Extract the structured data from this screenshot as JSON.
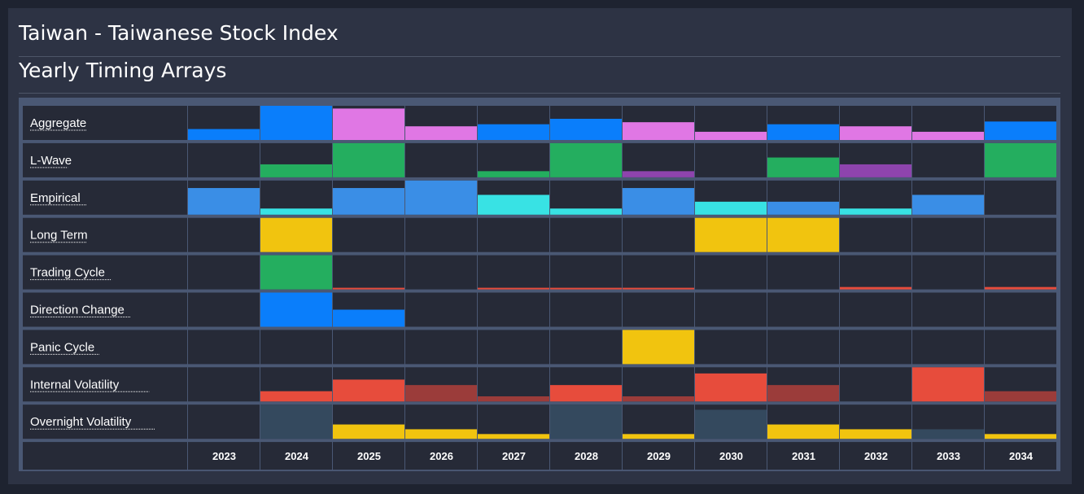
{
  "header": {
    "title": "Taiwan - Taiwanese Stock Index",
    "subtitle": "Yearly Timing Arrays"
  },
  "colors": {
    "cell_bg": "#262a37",
    "grid_line": "#4a5874",
    "blue": "#0a7efb",
    "pink": "#e077e4",
    "green": "#24ae5f",
    "purple": "#8e44ad",
    "lightblue": "#3a8ee6",
    "cyan": "#38e2e4",
    "yellow": "#f1c40f",
    "red": "#e74c3c",
    "darkred": "#9b3c3a",
    "slate": "#34495e"
  },
  "chart_data": {
    "type": "heatmap",
    "title": "Yearly Timing Arrays",
    "years": [
      "2023",
      "2024",
      "2025",
      "2026",
      "2027",
      "2028",
      "2029",
      "2030",
      "2031",
      "2032",
      "2033",
      "2034"
    ],
    "rows": [
      {
        "label": "Aggregate",
        "values": [
          0.32,
          1.0,
          0.92,
          0.4,
          0.46,
          0.62,
          0.52,
          0.24,
          0.46,
          0.4,
          0.24,
          0.54
        ],
        "colors": [
          "blue",
          "blue",
          "pink",
          "pink",
          "blue",
          "blue",
          "pink",
          "pink",
          "blue",
          "pink",
          "pink",
          "blue"
        ]
      },
      {
        "label": "L-Wave",
        "values": [
          0,
          0.38,
          1.0,
          0,
          0.18,
          1.0,
          0.18,
          0,
          0.58,
          0.38,
          0,
          1.0
        ],
        "colors": [
          "green",
          "green",
          "green",
          "green",
          "green",
          "green",
          "purple",
          "green",
          "green",
          "purple",
          "green",
          "green"
        ]
      },
      {
        "label": "Empirical",
        "values": [
          0.78,
          0.18,
          0.78,
          1.0,
          0.58,
          0.18,
          0.78,
          0.38,
          0.38,
          0.18,
          0.58,
          0
        ],
        "colors": [
          "lightblue",
          "cyan",
          "lightblue",
          "lightblue",
          "cyan",
          "cyan",
          "lightblue",
          "cyan",
          "lightblue",
          "cyan",
          "lightblue",
          "lightblue"
        ]
      },
      {
        "label": "Long Term",
        "values": [
          0,
          1.0,
          0,
          0,
          0,
          0,
          0,
          1.0,
          1.0,
          0,
          0,
          0
        ],
        "colors": [
          "yellow",
          "yellow",
          "yellow",
          "yellow",
          "yellow",
          "yellow",
          "yellow",
          "yellow",
          "yellow",
          "yellow",
          "yellow",
          "yellow"
        ]
      },
      {
        "label": "Trading Cycle",
        "values": [
          0,
          1.0,
          0.04,
          0,
          0.04,
          0.04,
          0.04,
          0,
          0,
          0.07,
          0,
          0.07
        ],
        "colors": [
          "green",
          "green",
          "red",
          "red",
          "red",
          "red",
          "red",
          "red",
          "red",
          "red",
          "red",
          "red"
        ]
      },
      {
        "label": "Direction Change",
        "values": [
          0,
          1.0,
          0.5,
          0,
          0,
          0,
          0,
          0,
          0,
          0,
          0,
          0
        ],
        "colors": [
          "blue",
          "blue",
          "blue",
          "blue",
          "blue",
          "blue",
          "blue",
          "blue",
          "blue",
          "blue",
          "blue",
          "blue"
        ]
      },
      {
        "label": "Panic Cycle",
        "values": [
          0,
          0,
          0,
          0,
          0,
          0,
          1.0,
          0,
          0,
          0,
          0,
          0
        ],
        "colors": [
          "yellow",
          "yellow",
          "yellow",
          "yellow",
          "yellow",
          "yellow",
          "yellow",
          "yellow",
          "yellow",
          "yellow",
          "yellow",
          "yellow"
        ]
      },
      {
        "label": "Internal Volatility",
        "values": [
          0,
          0.3,
          0.64,
          0.48,
          0.15,
          0.48,
          0.15,
          0.82,
          0.48,
          0,
          1.0,
          0.3
        ],
        "colors": [
          "red",
          "red",
          "red",
          "darkred",
          "darkred",
          "red",
          "darkred",
          "red",
          "darkred",
          "red",
          "red",
          "darkred"
        ]
      },
      {
        "label": "Overnight Volatility",
        "values": [
          0,
          1.0,
          0.42,
          0.28,
          0.14,
          1.0,
          0.14,
          0.85,
          0.42,
          0.28,
          0.28,
          0.14
        ],
        "colors": [
          "slate",
          "slate",
          "yellow",
          "yellow",
          "yellow",
          "slate",
          "yellow",
          "slate",
          "yellow",
          "yellow",
          "slate",
          "yellow"
        ]
      }
    ]
  }
}
